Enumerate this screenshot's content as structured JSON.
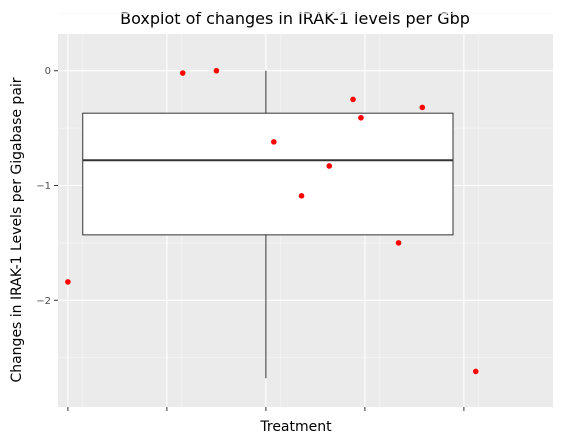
{
  "chart_data": {
    "type": "boxplot",
    "title": "Boxplot of changes in IRAK-1 levels per Gbp",
    "xlabel": "Treatment",
    "ylabel": "Changes in  IRAK-1 Levels per Gigabase pair",
    "x_tick_labels": [
      "",
      "",
      "",
      "",
      ""
    ],
    "y_ticks": [
      0,
      -1,
      -2
    ],
    "y_tick_labels": [
      "0",
      "−1",
      "−2"
    ],
    "ylim": [
      -2.93,
      0.32
    ],
    "xlim": [
      -0.125,
      1.125
    ],
    "grid": true,
    "box": {
      "whisker_high": 0.0,
      "q3": -0.37,
      "median": -0.78,
      "q1": -1.43,
      "whisker_low": -2.68
    },
    "points": [
      {
        "x": -0.1,
        "y": -1.84
      },
      {
        "x": 0.19,
        "y": -0.02
      },
      {
        "x": 0.275,
        "y": 0.0
      },
      {
        "x": 0.42,
        "y": -0.62
      },
      {
        "x": 0.49,
        "y": -1.09
      },
      {
        "x": 0.56,
        "y": -0.83
      },
      {
        "x": 0.62,
        "y": -0.25
      },
      {
        "x": 0.64,
        "y": -0.41
      },
      {
        "x": 0.735,
        "y": -1.5
      },
      {
        "x": 0.795,
        "y": -0.32
      },
      {
        "x": 0.93,
        "y": -2.62
      }
    ],
    "colors": {
      "panel": "#ebebeb",
      "grid_major": "#ffffff",
      "grid_minor": "#f5f5f5",
      "point": "#ff0000",
      "box_fill": "#ffffff",
      "box_line": "#333333"
    }
  }
}
